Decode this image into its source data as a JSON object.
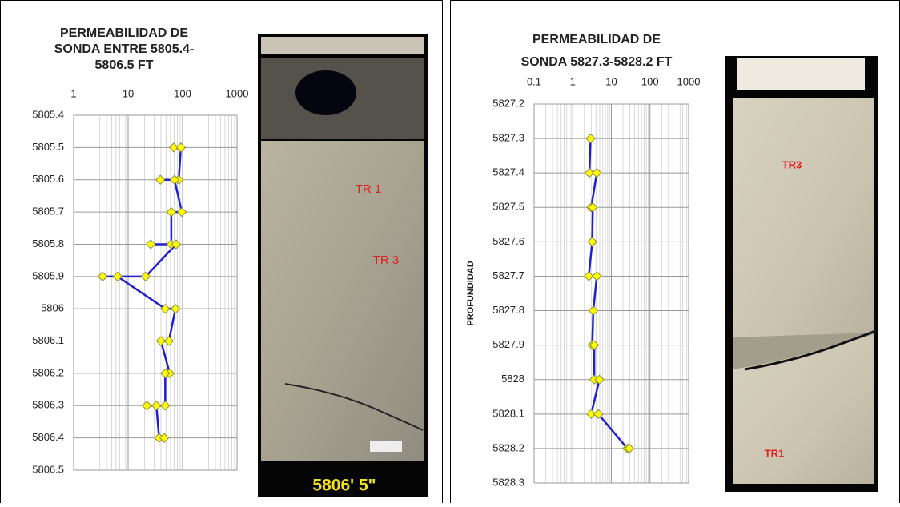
{
  "chart_data": [
    {
      "type": "scatter",
      "title": [
        "PERMEABILIDAD DE",
        "SONDA  ENTRE 5805.4-",
        "5806.5 FT"
      ],
      "xlim": [
        1,
        1000
      ],
      "xticks": [
        1,
        10,
        100,
        1000
      ],
      "xscale": "log",
      "ylim": [
        5805.4,
        5806.5
      ],
      "yticks": [
        5805.4,
        5805.5,
        5805.6,
        5805.7,
        5805.8,
        5805.9,
        5806,
        5806.1,
        5806.2,
        5806.3,
        5806.4,
        5806.5
      ],
      "yinverted": true,
      "grid": true,
      "series": [
        {
          "color": "#1f1fd0",
          "marker_color": "#ffff00",
          "x": [
            69,
            93,
            85,
            39,
            71,
            97,
            62,
            62,
            26,
            76,
            21,
            3.4,
            6.4,
            48,
            74,
            56,
            40,
            58,
            48,
            48,
            22,
            33,
            37,
            46
          ],
          "values": [
            5805.5,
            5805.5,
            5805.6,
            5805.6,
            5805.6,
            5805.7,
            5805.7,
            5805.8,
            5805.8,
            5805.8,
            5805.9,
            5805.9,
            5805.9,
            5806,
            5806,
            5806.1,
            5806.1,
            5806.2,
            5806.2,
            5806.3,
            5806.3,
            5806.3,
            5806.4,
            5806.4
          ]
        }
      ],
      "annotations": [
        "TR 1",
        "TR 3",
        "5806' 5\""
      ]
    },
    {
      "type": "scatter",
      "title": [
        "PERMEABILIDAD DE",
        "SONDA 5827.3-5828.2 FT"
      ],
      "ylabel": "PROFUNDIDAD",
      "xlim": [
        0.1,
        1000
      ],
      "xticks": [
        0.1,
        1,
        10,
        100,
        1000
      ],
      "xscale": "log",
      "ylim": [
        5827.2,
        5828.3
      ],
      "yticks": [
        5827.2,
        5827.3,
        5827.4,
        5827.5,
        5827.6,
        5827.7,
        5827.8,
        5827.9,
        5828,
        5828.1,
        5828.2,
        5828.3
      ],
      "yinverted": true,
      "grid": true,
      "series": [
        {
          "color": "#1f1fd0",
          "marker_color": "#ffff00",
          "x": [
            2.9,
            2.7,
            4.2,
            3.0,
            3.3,
            3.2,
            2.6,
            4.2,
            3.4,
            3.2,
            3.6,
            3.6,
            4.9,
            3.0,
            4.6,
            26,
            29
          ],
          "values": [
            5827.3,
            5827.4,
            5827.4,
            5827.5,
            5827.5,
            5827.6,
            5827.7,
            5827.7,
            5827.8,
            5827.9,
            5827.9,
            5828,
            5828,
            5828.1,
            5828.1,
            5828.2,
            5828.2
          ]
        }
      ],
      "annotations": [
        "TR3",
        "TR1"
      ]
    }
  ]
}
